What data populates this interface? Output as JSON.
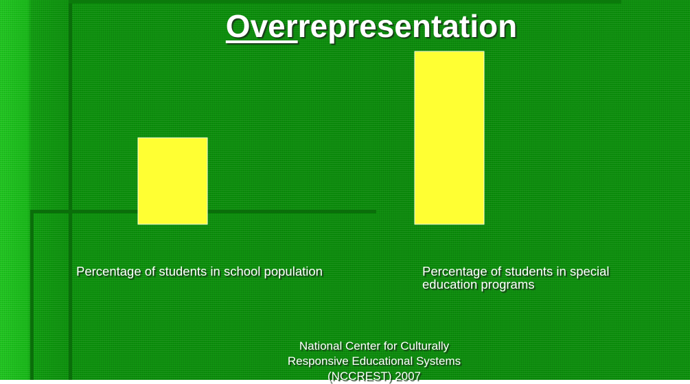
{
  "chart_data": {
    "type": "bar",
    "title": {
      "underlined": "Over",
      "rest": "representation"
    },
    "categories": [
      "Percentage of students in school population",
      "Percentage of students in special education programs"
    ],
    "values": [
      10,
      20
    ],
    "color": "#ffff33",
    "ylim": [
      0,
      20
    ]
  },
  "footer": [
    "National Center for Culturally",
    "Responsive Educational Systems",
    "(NCCREST) 2007"
  ]
}
